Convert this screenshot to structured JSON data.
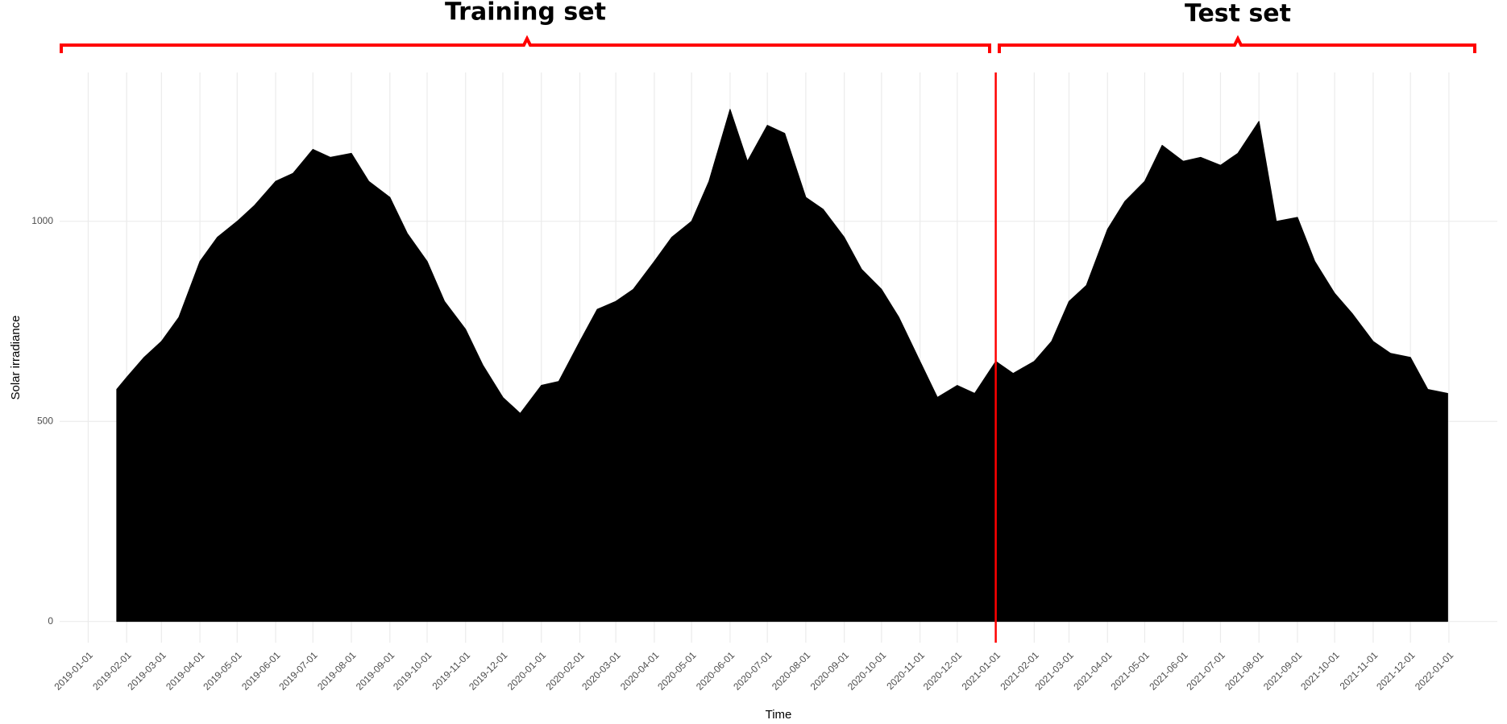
{
  "chart_data": {
    "type": "area",
    "x_label": "Time",
    "y_label": "Solar irradiance",
    "xlim": [
      "2018-12-09",
      "2022-02-09"
    ],
    "ylim": [
      -53,
      1372
    ],
    "xticks": [
      "2019-01-01",
      "2019-02-01",
      "2019-03-01",
      "2019-04-01",
      "2019-05-01",
      "2019-06-01",
      "2019-07-01",
      "2019-08-01",
      "2019-09-01",
      "2019-10-01",
      "2019-11-01",
      "2019-12-01",
      "2020-01-01",
      "2020-02-01",
      "2020-03-01",
      "2020-04-01",
      "2020-05-01",
      "2020-06-01",
      "2020-07-01",
      "2020-08-01",
      "2020-09-01",
      "2020-10-01",
      "2020-11-01",
      "2020-12-01",
      "2021-01-01",
      "2021-02-01",
      "2021-03-01",
      "2021-04-01",
      "2021-05-01",
      "2021-06-01",
      "2021-07-01",
      "2021-08-01",
      "2021-09-01",
      "2021-10-01",
      "2021-11-01",
      "2021-12-01",
      "2022-01-01"
    ],
    "yticks": [
      0,
      500,
      1000
    ],
    "grid": true,
    "color": "#000000",
    "split": {
      "x": "2021-01-01",
      "color": "#ff0000",
      "left_label": "Training set",
      "right_label": "Test set"
    },
    "x": [
      "2019-01-24",
      "2019-02-01",
      "2019-02-15",
      "2019-03-01",
      "2019-03-15",
      "2019-04-01",
      "2019-04-15",
      "2019-05-01",
      "2019-05-15",
      "2019-06-01",
      "2019-06-15",
      "2019-07-01",
      "2019-07-15",
      "2019-08-01",
      "2019-08-15",
      "2019-09-01",
      "2019-09-15",
      "2019-10-01",
      "2019-10-15",
      "2019-11-01",
      "2019-11-15",
      "2019-12-01",
      "2019-12-15",
      "2020-01-01",
      "2020-01-15",
      "2020-02-01",
      "2020-02-15",
      "2020-03-01",
      "2020-03-15",
      "2020-04-01",
      "2020-04-15",
      "2020-05-01",
      "2020-05-15",
      "2020-06-01",
      "2020-06-15",
      "2020-07-01",
      "2020-07-15",
      "2020-08-01",
      "2020-08-15",
      "2020-09-01",
      "2020-09-15",
      "2020-10-01",
      "2020-10-15",
      "2020-11-01",
      "2020-11-15",
      "2020-12-01",
      "2020-12-15",
      "2021-01-01",
      "2021-01-15",
      "2021-02-01",
      "2021-02-15",
      "2021-03-01",
      "2021-03-15",
      "2021-04-01",
      "2021-04-15",
      "2021-05-01",
      "2021-05-15",
      "2021-06-01",
      "2021-06-15",
      "2021-07-01",
      "2021-07-15",
      "2021-08-01",
      "2021-08-15",
      "2021-09-01",
      "2021-09-15",
      "2021-10-01",
      "2021-10-15",
      "2021-11-01",
      "2021-11-15",
      "2021-12-01",
      "2021-12-15",
      "2021-12-31"
    ],
    "values": [
      580,
      610,
      660,
      700,
      760,
      900,
      960,
      1000,
      1040,
      1100,
      1120,
      1180,
      1160,
      1170,
      1100,
      1060,
      970,
      900,
      800,
      730,
      640,
      560,
      520,
      590,
      600,
      700,
      780,
      800,
      830,
      900,
      960,
      1000,
      1100,
      1280,
      1150,
      1240,
      1220,
      1060,
      1030,
      960,
      880,
      830,
      760,
      650,
      560,
      590,
      570,
      650,
      620,
      650,
      700,
      800,
      840,
      980,
      1050,
      1100,
      1190,
      1150,
      1160,
      1140,
      1170,
      1250,
      1000,
      1010,
      900,
      820,
      770,
      700,
      670,
      660,
      580,
      570
    ]
  }
}
